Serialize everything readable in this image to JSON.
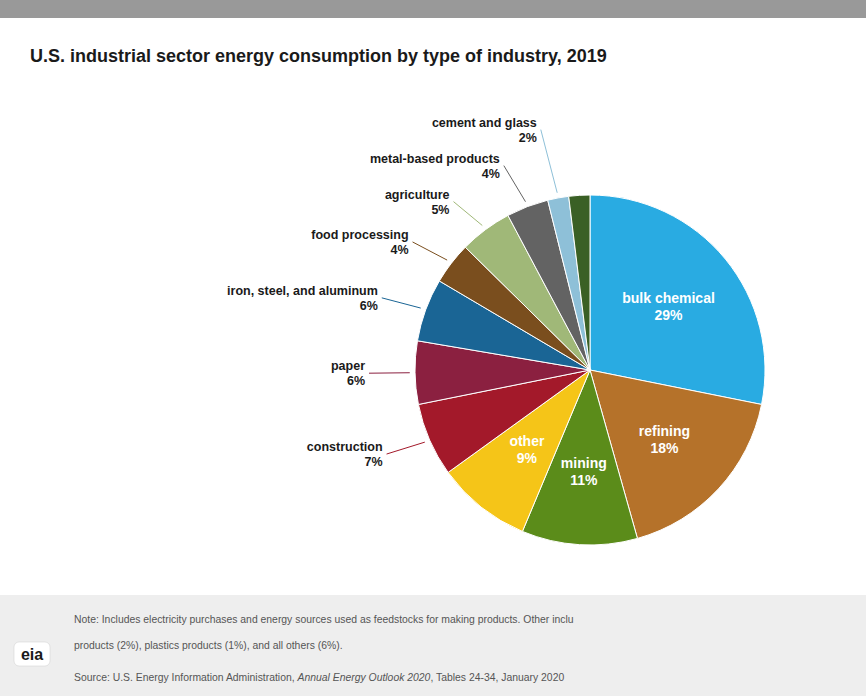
{
  "chart_data": {
    "type": "pie",
    "title": "U.S. industrial sector energy consumption by type of industry, 2019",
    "categories": [
      "bulk chemical",
      "refining",
      "mining",
      "other",
      "construction",
      "paper",
      "iron, steel, and aluminum",
      "food processing",
      "agriculture",
      "metal-based products",
      "cement and glass",
      null
    ],
    "values": [
      29,
      18,
      11,
      9,
      7,
      6,
      6,
      4,
      5,
      4,
      2,
      2
    ],
    "value_labels": [
      "29%",
      "18%",
      "11%",
      "9%",
      "7%",
      "6%",
      "6%",
      "4%",
      "5%",
      "4%",
      "2%",
      null
    ],
    "colors": [
      "#29ABE2",
      "#B5722A",
      "#5B8C1A",
      "#F5C518",
      "#A3192A",
      "#8B2040",
      "#1A6595",
      "#7A4E1E",
      "#A0B878",
      "#636363",
      "#8EC0D8",
      "#3A6025"
    ],
    "data_labels": true,
    "annotations": [
      "Note: Includes electricity purchases and energy sources used as feedstocks for making products. Other inclu",
      "products (2%), plastics products (1%), and all others (6%).",
      "Source: U.S. Energy Information Administration, ",
      "Annual Energy Outlook 2020",
      ", Tables 24-34, January 2020",
      "eia"
    ]
  }
}
